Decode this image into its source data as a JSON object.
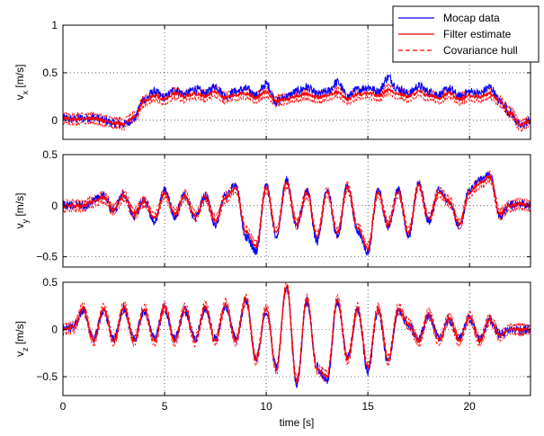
{
  "chart_data": [
    {
      "type": "line",
      "panel": "vx",
      "ylabel_main": "v",
      "ylabel_sub": "x",
      "ylabel_unit": "[m/s]",
      "xlim": [
        0,
        23
      ],
      "ylim": [
        -0.2,
        1
      ],
      "yticks": [
        0,
        0.5,
        1
      ],
      "ytick_labels": [
        "0",
        "0.5",
        "1"
      ],
      "xticks": [
        0,
        5,
        10,
        15,
        20
      ],
      "grid": true,
      "legend": {
        "placement": "top-right",
        "entries": [
          {
            "label": "Mocap data",
            "color": "#0000ff",
            "dash": "solid"
          },
          {
            "label": "Filter estimate",
            "color": "#ff0000",
            "dash": "solid"
          },
          {
            "label": "Covariance hull",
            "color": "#ff0000",
            "dash": "dashed"
          }
        ]
      },
      "series": [
        {
          "name": "Mocap data",
          "color": "#0000ff",
          "x": [
            0,
            0.5,
            1,
            1.5,
            2,
            2.5,
            3,
            3.5,
            4,
            4.5,
            5,
            5.5,
            6,
            6.5,
            7,
            7.5,
            8,
            8.5,
            9,
            9.5,
            10,
            10.5,
            11,
            11.5,
            12,
            12.5,
            13,
            13.5,
            14,
            14.5,
            15,
            15.5,
            16,
            16.5,
            17,
            17.5,
            18,
            18.5,
            19,
            19.5,
            20,
            20.5,
            21,
            21.5,
            22,
            22.5,
            23
          ],
          "y": [
            0.02,
            0.01,
            0.02,
            0.03,
            0.0,
            -0.03,
            -0.04,
            0.02,
            0.22,
            0.3,
            0.24,
            0.32,
            0.27,
            0.33,
            0.28,
            0.36,
            0.25,
            0.3,
            0.33,
            0.26,
            0.38,
            0.2,
            0.25,
            0.3,
            0.35,
            0.27,
            0.3,
            0.4,
            0.25,
            0.32,
            0.35,
            0.3,
            0.45,
            0.33,
            0.28,
            0.36,
            0.3,
            0.27,
            0.33,
            0.25,
            0.3,
            0.28,
            0.35,
            0.2,
            0.08,
            -0.06,
            0.0
          ]
        },
        {
          "name": "Filter estimate",
          "color": "#ff0000",
          "x": [
            0,
            0.5,
            1,
            1.5,
            2,
            2.5,
            3,
            3.5,
            4,
            4.5,
            5,
            5.5,
            6,
            6.5,
            7,
            7.5,
            8,
            8.5,
            9,
            9.5,
            10,
            10.5,
            11,
            11.5,
            12,
            12.5,
            13,
            13.5,
            14,
            14.5,
            15,
            15.5,
            16,
            16.5,
            17,
            17.5,
            18,
            18.5,
            19,
            19.5,
            20,
            20.5,
            21,
            21.5,
            22,
            22.5,
            23
          ],
          "y": [
            0.02,
            0.01,
            0.02,
            0.02,
            0.0,
            -0.03,
            -0.04,
            0.03,
            0.2,
            0.26,
            0.22,
            0.28,
            0.25,
            0.28,
            0.26,
            0.3,
            0.24,
            0.27,
            0.28,
            0.24,
            0.3,
            0.2,
            0.22,
            0.26,
            0.28,
            0.24,
            0.26,
            0.3,
            0.22,
            0.27,
            0.28,
            0.26,
            0.32,
            0.28,
            0.25,
            0.3,
            0.26,
            0.24,
            0.28,
            0.22,
            0.26,
            0.25,
            0.28,
            0.2,
            0.08,
            -0.05,
            0.0
          ]
        }
      ]
    },
    {
      "type": "line",
      "panel": "vy",
      "ylabel_main": "v",
      "ylabel_sub": "y",
      "ylabel_unit": "[m/s]",
      "xlim": [
        0,
        23
      ],
      "ylim": [
        -0.6,
        0.5
      ],
      "yticks": [
        -0.5,
        0,
        0.5
      ],
      "ytick_labels": [
        "−0.5",
        "0",
        "0.5"
      ],
      "xticks": [
        0,
        5,
        10,
        15,
        20
      ],
      "grid": true,
      "series": [
        {
          "name": "Mocap data",
          "color": "#0000ff",
          "x": [
            0,
            0.5,
            1,
            1.5,
            2,
            2.5,
            3,
            3.5,
            4,
            4.5,
            5,
            5.5,
            6,
            6.5,
            7,
            7.5,
            8,
            8.5,
            9,
            9.5,
            10,
            10.5,
            11,
            11.5,
            12,
            12.5,
            13,
            13.5,
            14,
            14.5,
            15,
            15.5,
            16,
            16.5,
            17,
            17.5,
            18,
            18.5,
            19,
            19.5,
            20,
            20.5,
            21,
            21.5,
            22,
            22.5,
            23
          ],
          "y": [
            0.0,
            0.0,
            0.0,
            0.05,
            0.1,
            -0.05,
            0.12,
            -0.1,
            0.05,
            -0.15,
            0.15,
            -0.1,
            0.12,
            -0.12,
            0.1,
            -0.18,
            0.1,
            0.2,
            -0.3,
            -0.45,
            0.2,
            -0.3,
            0.25,
            -0.2,
            0.15,
            -0.35,
            0.15,
            -0.3,
            0.2,
            -0.25,
            -0.45,
            0.15,
            -0.2,
            0.15,
            -0.3,
            0.22,
            -0.15,
            0.15,
            0.05,
            -0.2,
            0.15,
            0.25,
            0.3,
            -0.1,
            0.0,
            0.02,
            0.0
          ]
        },
        {
          "name": "Filter estimate",
          "color": "#ff0000",
          "x": [
            0,
            0.5,
            1,
            1.5,
            2,
            2.5,
            3,
            3.5,
            4,
            4.5,
            5,
            5.5,
            6,
            6.5,
            7,
            7.5,
            8,
            8.5,
            9,
            9.5,
            10,
            10.5,
            11,
            11.5,
            12,
            12.5,
            13,
            13.5,
            14,
            14.5,
            15,
            15.5,
            16,
            16.5,
            17,
            17.5,
            18,
            18.5,
            19,
            19.5,
            20,
            20.5,
            21,
            21.5,
            22,
            22.5,
            23
          ],
          "y": [
            0.0,
            0.0,
            0.0,
            0.04,
            0.08,
            -0.04,
            0.1,
            -0.08,
            0.04,
            -0.12,
            0.12,
            -0.08,
            0.1,
            -0.1,
            0.08,
            -0.15,
            0.08,
            0.18,
            -0.25,
            -0.4,
            0.18,
            -0.26,
            0.22,
            -0.18,
            0.13,
            -0.3,
            0.13,
            -0.26,
            0.18,
            -0.22,
            -0.42,
            0.13,
            -0.18,
            0.13,
            -0.26,
            0.2,
            -0.13,
            0.13,
            0.04,
            -0.18,
            0.13,
            0.22,
            0.28,
            -0.08,
            0.0,
            0.02,
            0.0
          ]
        }
      ]
    },
    {
      "type": "line",
      "panel": "vz",
      "ylabel_main": "v",
      "ylabel_sub": "z",
      "ylabel_unit": "[m/s]",
      "xlabel": "time [s]",
      "xlim": [
        0,
        23
      ],
      "ylim": [
        -0.7,
        0.5
      ],
      "yticks": [
        -0.5,
        0,
        0.5
      ],
      "ytick_labels": [
        "−0.5",
        "0",
        "0.5"
      ],
      "xticks": [
        0,
        5,
        10,
        15,
        20
      ],
      "xtick_labels": [
        "0",
        "5",
        "10",
        "15",
        "20"
      ],
      "grid": true,
      "series": [
        {
          "name": "Mocap data",
          "color": "#0000ff",
          "x": [
            0,
            0.5,
            1,
            1.5,
            2,
            2.5,
            3,
            3.5,
            4,
            4.5,
            5,
            5.5,
            6,
            6.5,
            7,
            7.5,
            8,
            8.5,
            9,
            9.5,
            10,
            10.5,
            11,
            11.5,
            12,
            12.5,
            13,
            13.5,
            14,
            14.5,
            15,
            15.5,
            16,
            16.5,
            17,
            17.5,
            18,
            18.5,
            19,
            19.5,
            20,
            20.5,
            21,
            21.5,
            22,
            22.5,
            23
          ],
          "y": [
            0.0,
            0.02,
            0.2,
            -0.1,
            0.2,
            -0.1,
            0.22,
            -0.1,
            0.2,
            -0.1,
            0.22,
            -0.1,
            0.2,
            -0.1,
            0.22,
            -0.1,
            0.25,
            -0.1,
            0.3,
            -0.3,
            0.2,
            -0.4,
            0.45,
            -0.6,
            0.3,
            -0.4,
            -0.55,
            0.3,
            -0.3,
            0.2,
            -0.45,
            0.2,
            -0.35,
            0.2,
            0.05,
            -0.1,
            0.15,
            -0.1,
            0.1,
            -0.1,
            0.12,
            -0.1,
            0.1,
            -0.05,
            0.0,
            0.0,
            0.0
          ]
        },
        {
          "name": "Filter estimate",
          "color": "#ff0000",
          "x": [
            0,
            0.5,
            1,
            1.5,
            2,
            2.5,
            3,
            3.5,
            4,
            4.5,
            5,
            5.5,
            6,
            6.5,
            7,
            7.5,
            8,
            8.5,
            9,
            9.5,
            10,
            10.5,
            11,
            11.5,
            12,
            12.5,
            13,
            13.5,
            14,
            14.5,
            15,
            15.5,
            16,
            16.5,
            17,
            17.5,
            18,
            18.5,
            19,
            19.5,
            20,
            20.5,
            21,
            21.5,
            22,
            22.5,
            23
          ],
          "y": [
            0.0,
            0.02,
            0.22,
            -0.12,
            0.22,
            -0.12,
            0.24,
            -0.12,
            0.22,
            -0.12,
            0.24,
            -0.12,
            0.22,
            -0.12,
            0.24,
            -0.12,
            0.27,
            -0.12,
            0.32,
            -0.32,
            0.22,
            -0.42,
            0.47,
            -0.55,
            0.32,
            -0.42,
            -0.5,
            0.32,
            -0.32,
            0.22,
            -0.4,
            0.22,
            -0.32,
            0.22,
            0.06,
            -0.12,
            0.16,
            -0.12,
            0.12,
            -0.12,
            0.13,
            -0.12,
            0.11,
            -0.06,
            0.0,
            0.0,
            0.0
          ]
        }
      ]
    }
  ]
}
